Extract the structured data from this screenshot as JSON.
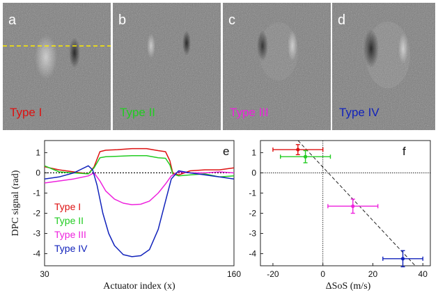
{
  "panels": [
    {
      "letter": "a",
      "type_label": "Type I",
      "color": "#dd1111"
    },
    {
      "letter": "b",
      "type_label": "Type II",
      "color": "#22cc22"
    },
    {
      "letter": "c",
      "type_label": "Type III",
      "color": "#ee22dd"
    },
    {
      "letter": "d",
      "type_label": "Type IV",
      "color": "#1122bb"
    }
  ],
  "chart_data": [
    {
      "panel": "e",
      "type": "line",
      "ylabel": "DPC signal (rad)",
      "xlabel": "Actuator index (x)",
      "xlim": [
        30,
        160
      ],
      "ylim": [
        -4.6,
        1.6
      ],
      "xticks": [
        "30",
        "160"
      ],
      "yticks": [
        "1",
        "0",
        "-1",
        "-2",
        "-3",
        "-4"
      ],
      "legend": "lower-left",
      "zero_line": "dotted",
      "series": [
        {
          "name": "Type I",
          "color": "#dd1111",
          "x": [
            30,
            40,
            50,
            60,
            64,
            68,
            72,
            80,
            90,
            100,
            108,
            113,
            116,
            118,
            122,
            130,
            140,
            150,
            160
          ],
          "y": [
            0.3,
            0.15,
            0.05,
            -0.05,
            0.3,
            1.05,
            1.12,
            1.15,
            1.2,
            1.2,
            1.1,
            1.05,
            0.6,
            0.0,
            -0.1,
            0.1,
            0.15,
            0.15,
            0.25
          ]
        },
        {
          "name": "Type II",
          "color": "#22cc22",
          "x": [
            30,
            40,
            50,
            60,
            64,
            68,
            72,
            80,
            90,
            100,
            108,
            113,
            116,
            118,
            122,
            130,
            140,
            150,
            160
          ],
          "y": [
            0.35,
            0.05,
            0.0,
            -0.05,
            0.25,
            0.75,
            0.8,
            0.82,
            0.85,
            0.85,
            0.75,
            0.72,
            0.4,
            -0.05,
            -0.15,
            -0.1,
            -0.05,
            -0.2,
            -0.15
          ]
        },
        {
          "name": "Type III",
          "color": "#ee22dd",
          "x": [
            30,
            40,
            50,
            60,
            64,
            68,
            72,
            78,
            84,
            90,
            96,
            102,
            108,
            113,
            117,
            122,
            130,
            140,
            150,
            160
          ],
          "y": [
            -0.5,
            -0.4,
            -0.3,
            -0.15,
            0.0,
            -0.4,
            -0.9,
            -1.3,
            -1.5,
            -1.58,
            -1.55,
            -1.4,
            -1.0,
            -0.55,
            -0.15,
            0.05,
            0.0,
            0.0,
            0.05,
            0.0
          ]
        },
        {
          "name": "Type IV",
          "color": "#1122bb",
          "x": [
            30,
            40,
            50,
            60,
            63,
            66,
            70,
            74,
            78,
            84,
            90,
            96,
            102,
            108,
            113,
            117,
            122,
            130,
            140,
            150,
            160
          ],
          "y": [
            -0.3,
            -0.2,
            0.0,
            0.35,
            0.15,
            -0.6,
            -2.0,
            -3.0,
            -3.6,
            -4.05,
            -4.15,
            -4.1,
            -3.8,
            -2.8,
            -1.4,
            -0.3,
            0.1,
            0.0,
            -0.1,
            -0.2,
            -0.3
          ]
        }
      ]
    },
    {
      "panel": "f",
      "type": "scatter",
      "ylabel": "",
      "xlabel": "ΔSoS (m/s)",
      "xlim": [
        -25,
        43
      ],
      "ylim": [
        -4.6,
        1.6
      ],
      "xticks": [
        "-20",
        "0",
        "20",
        "40"
      ],
      "yticks": [
        "1",
        "0",
        "-1",
        "-2",
        "-3",
        "-4"
      ],
      "fit_line": {
        "x": [
          -13,
          40
        ],
        "y": [
          2.0,
          -5.0
        ],
        "style": "dashed"
      },
      "points": [
        {
          "x": -10,
          "y": 1.15,
          "xerr": 10,
          "yerr": 0.25,
          "color": "#dd1111"
        },
        {
          "x": -7,
          "y": 0.8,
          "xerr": 10,
          "yerr": 0.3,
          "color": "#22cc22"
        },
        {
          "x": 12,
          "y": -1.65,
          "xerr": 10,
          "yerr": 0.35,
          "color": "#ee22dd"
        },
        {
          "x": 32,
          "y": -4.25,
          "xerr": 8,
          "yerr": 0.4,
          "color": "#1122bb"
        }
      ]
    }
  ],
  "labels": {
    "e": "e",
    "f": "f"
  }
}
